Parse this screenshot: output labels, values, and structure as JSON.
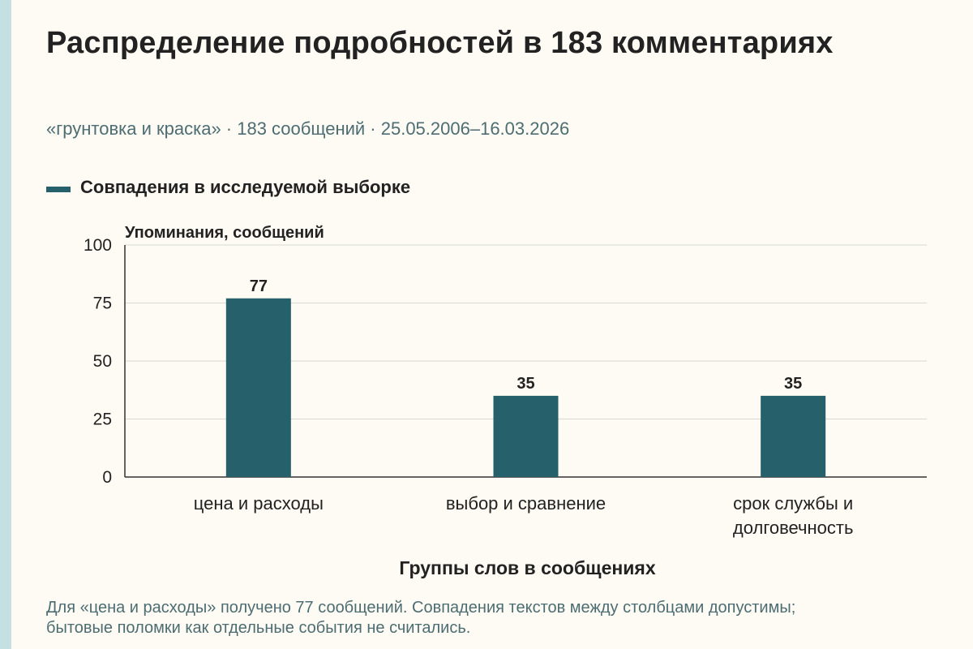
{
  "title": "Распределение подробностей в 183 комментариях",
  "subtitle": "«грунтовка и краска» · 183 сообщений · 25.05.2006–16.03.2026",
  "footnote": "Для «цена и расходы» получено 77 сообщений. Совпадения текстов между столбцами допустимы; бытовые поломки как отдельные события не считались.",
  "colors": {
    "bar": "#26606b",
    "grid": "#d9d9d2",
    "axis": "#333333",
    "text": "#222222",
    "muted": "#4d6d73"
  },
  "chart_data": {
    "type": "bar",
    "categories": [
      [
        "цена и расходы"
      ],
      [
        "выбор и сравнение"
      ],
      [
        "срок службы и",
        "долговечность"
      ]
    ],
    "series": [
      {
        "name": "Совпадения в исследуемой выборке",
        "values": [
          77,
          35,
          35
        ]
      }
    ],
    "ylabel": "Упоминания, сообщений",
    "xlabel": "Группы слов в сообщениях",
    "ylim": [
      0,
      100
    ],
    "yticks": [
      0,
      25,
      50,
      75,
      100
    ],
    "grid": true,
    "legend": "top-left",
    "data_labels": true
  }
}
